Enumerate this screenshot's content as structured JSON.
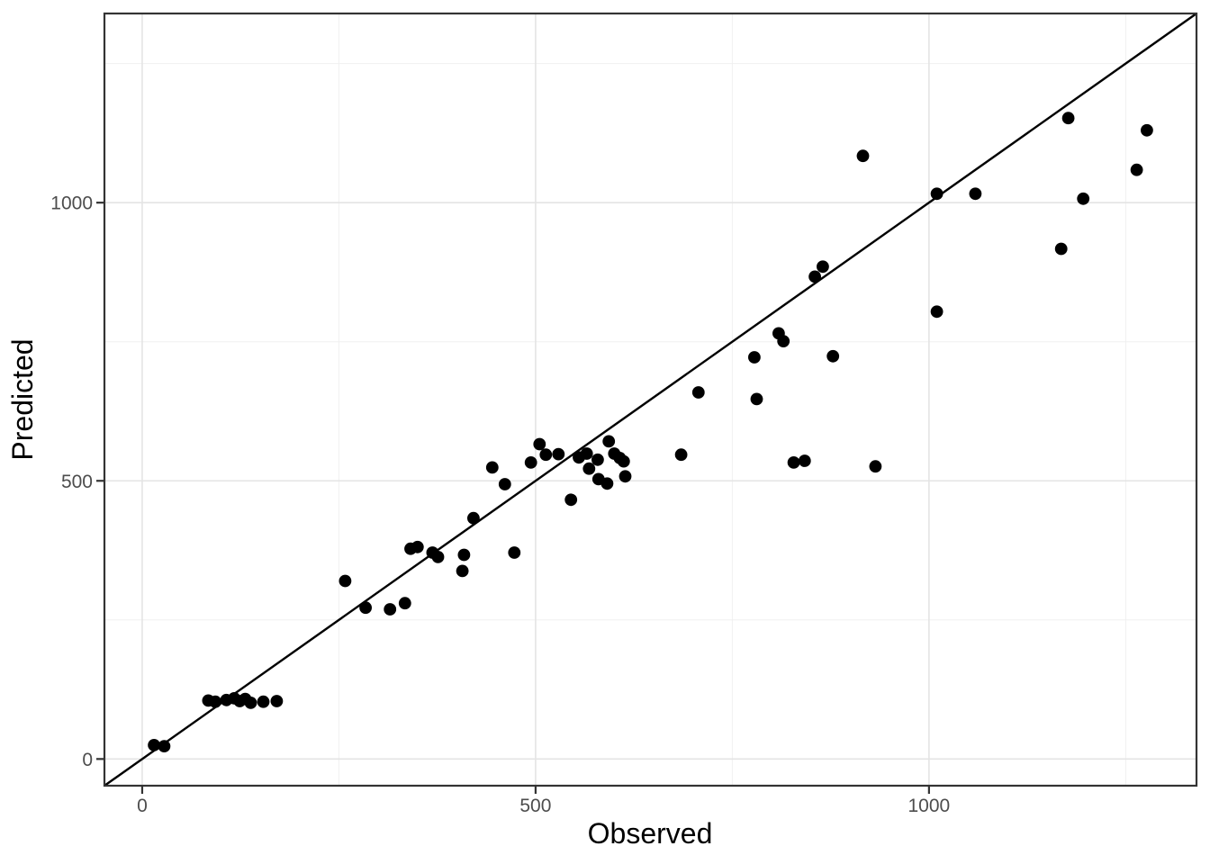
{
  "chart_data": {
    "type": "scatter",
    "title": "",
    "xlabel": "Observed",
    "ylabel": "Predicted",
    "xlim": [
      -48,
      1340
    ],
    "ylim": [
      -48,
      1340
    ],
    "x_ticks": {
      "major": [
        0,
        500,
        1000
      ],
      "minor": [
        250,
        750,
        1250
      ]
    },
    "y_ticks": {
      "major": [
        0,
        500,
        1000
      ],
      "minor": [
        250,
        750,
        1250
      ]
    },
    "grid": "major-and-minor",
    "legend_position": "none",
    "reference_line": {
      "type": "identity",
      "slope": 1,
      "intercept": 0,
      "color": "#000000"
    },
    "style": {
      "background": "#ffffff",
      "panel_background": "#ffffff",
      "panel_border_color": "#333333",
      "grid_major_color": "#e4e4e4",
      "grid_minor_color": "#f0f0f0",
      "tick_color": "#333333",
      "tick_label_color": "#4d4d4d",
      "axis_title_color": "#000000",
      "point_color": "#000000",
      "point_radius_px": 6.9
    },
    "points": [
      [
        15,
        25
      ],
      [
        28,
        23
      ],
      [
        84,
        105
      ],
      [
        93,
        103
      ],
      [
        107,
        106
      ],
      [
        117,
        109
      ],
      [
        124,
        104
      ],
      [
        131,
        108
      ],
      [
        138,
        101
      ],
      [
        154,
        103
      ],
      [
        171,
        104
      ],
      [
        258,
        320
      ],
      [
        284,
        272
      ],
      [
        315,
        269
      ],
      [
        334,
        280
      ],
      [
        341,
        378
      ],
      [
        350,
        381
      ],
      [
        369,
        371
      ],
      [
        376,
        363
      ],
      [
        407,
        338
      ],
      [
        409,
        367
      ],
      [
        421,
        433
      ],
      [
        473,
        371
      ],
      [
        445,
        524
      ],
      [
        461,
        494
      ],
      [
        494,
        533
      ],
      [
        505,
        566
      ],
      [
        513,
        547
      ],
      [
        529,
        548
      ],
      [
        545,
        466
      ],
      [
        555,
        542
      ],
      [
        565,
        549
      ],
      [
        568,
        522
      ],
      [
        579,
        538
      ],
      [
        580,
        503
      ],
      [
        591,
        495
      ],
      [
        593,
        571
      ],
      [
        600,
        549
      ],
      [
        607,
        541
      ],
      [
        612,
        535
      ],
      [
        614,
        508
      ],
      [
        685,
        547
      ],
      [
        707,
        659
      ],
      [
        778,
        722
      ],
      [
        781,
        647
      ],
      [
        809,
        765
      ],
      [
        815,
        751
      ],
      [
        828,
        533
      ],
      [
        842,
        536
      ],
      [
        855,
        867
      ],
      [
        865,
        885
      ],
      [
        878,
        724
      ],
      [
        932,
        526
      ],
      [
        916,
        1084
      ],
      [
        1010,
        804
      ],
      [
        1010,
        1016
      ],
      [
        1059,
        1016
      ],
      [
        1168,
        917
      ],
      [
        1177,
        1152
      ],
      [
        1196,
        1007
      ],
      [
        1264,
        1059
      ],
      [
        1277,
        1130
      ]
    ]
  }
}
